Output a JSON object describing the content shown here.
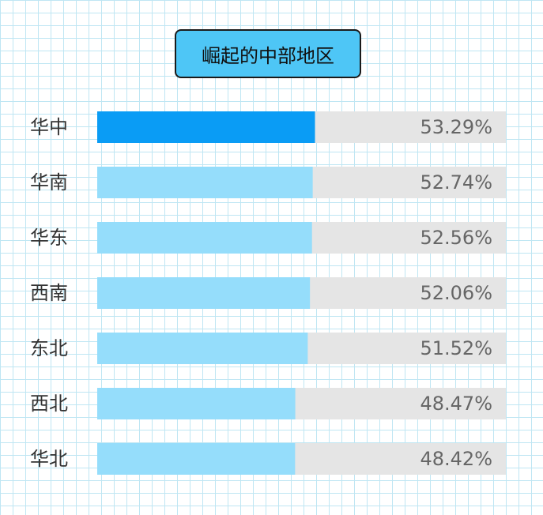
{
  "chart_data": {
    "type": "bar",
    "orientation": "horizontal",
    "title": "崛起的中部地区",
    "categories": [
      "华中",
      "华南",
      "华东",
      "西南",
      "东北",
      "西北",
      "华北"
    ],
    "values": [
      53.29,
      52.74,
      52.56,
      52.06,
      51.52,
      48.47,
      48.42
    ],
    "value_labels": [
      "53.29%",
      "52.74%",
      "52.56%",
      "52.06%",
      "51.52%",
      "48.47%",
      "48.42%"
    ],
    "ylim": [
      0,
      100
    ],
    "grid": false,
    "colors": {
      "highlight": "#0a9cf5",
      "bar": "#95ddfb",
      "track": "#e5e5e5",
      "title_bg": "#4ec6f6"
    }
  }
}
